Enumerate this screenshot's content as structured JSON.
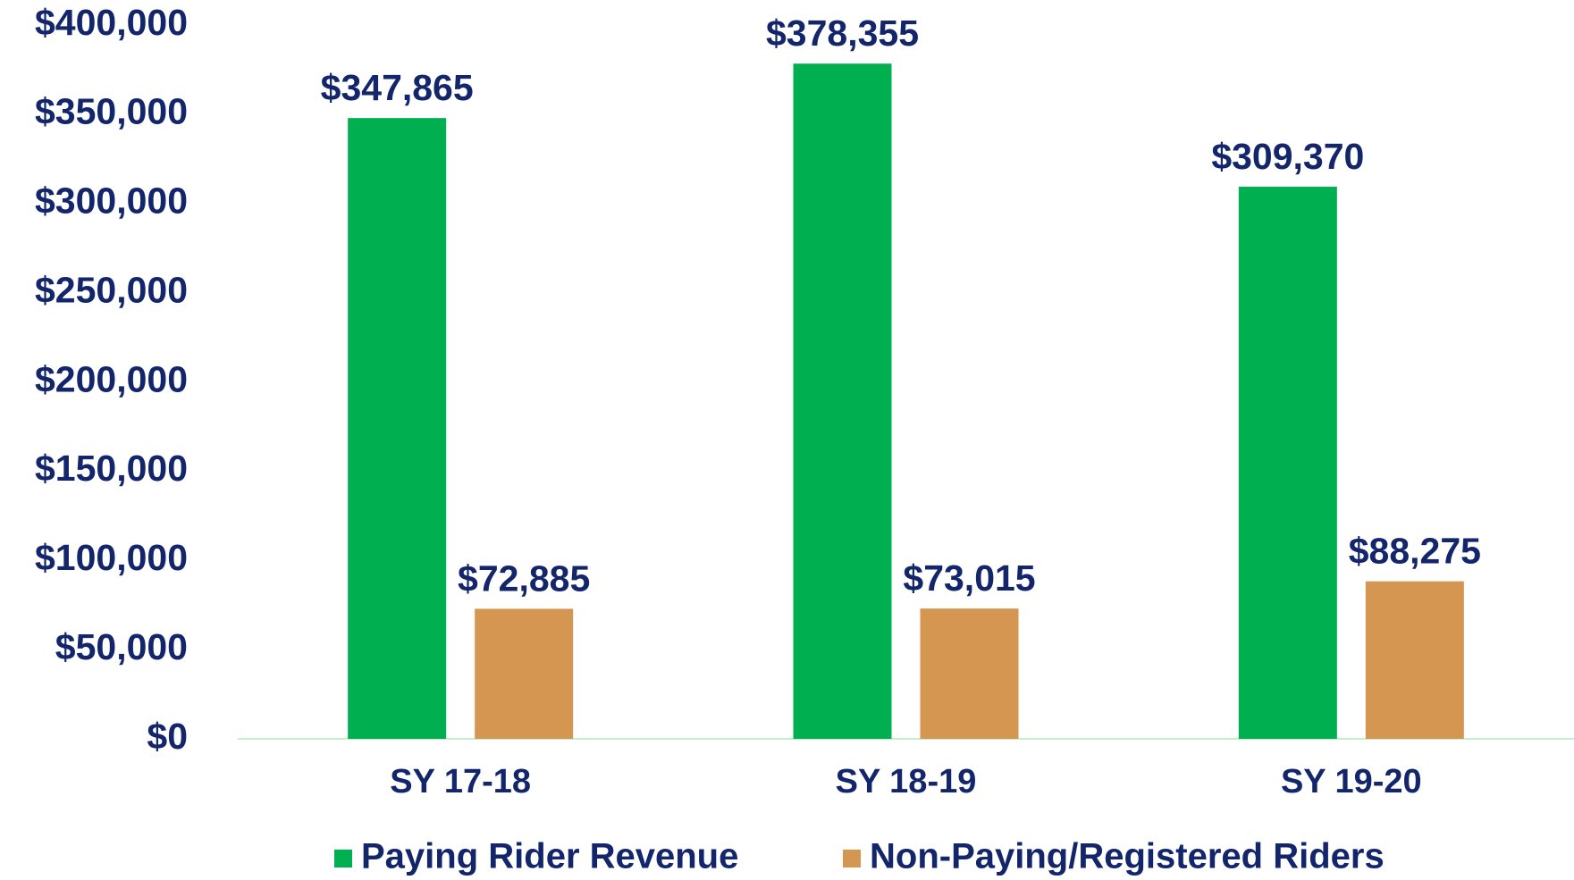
{
  "chart_data": {
    "type": "bar",
    "categories": [
      "SY 17-18",
      "SY 18-19",
      "SY 19-20"
    ],
    "series": [
      {
        "name": "Paying Rider Revenue",
        "color": "#00b050",
        "values": [
          347865,
          378355,
          309370
        ],
        "value_labels": [
          "$347,865",
          "$378,355",
          "$309,370"
        ]
      },
      {
        "name": "Non-Paying/Registered Riders",
        "color": "#d59651",
        "values": [
          72885,
          73015,
          88275
        ],
        "value_labels": [
          "$72,885",
          "$73,015",
          "$88,275"
        ]
      }
    ],
    "ylim": [
      0,
      400000
    ],
    "yticks": [
      {
        "value": 0,
        "label": "$0"
      },
      {
        "value": 50000,
        "label": "$50,000"
      },
      {
        "value": 100000,
        "label": "$100,000"
      },
      {
        "value": 150000,
        "label": "$150,000"
      },
      {
        "value": 200000,
        "label": "$200,000"
      },
      {
        "value": 250000,
        "label": "$250,000"
      },
      {
        "value": 300000,
        "label": "$300,000"
      },
      {
        "value": 350000,
        "label": "$350,000"
      },
      {
        "value": 400000,
        "label": "$400,000"
      }
    ],
    "grid": false,
    "legend": "bottom"
  }
}
